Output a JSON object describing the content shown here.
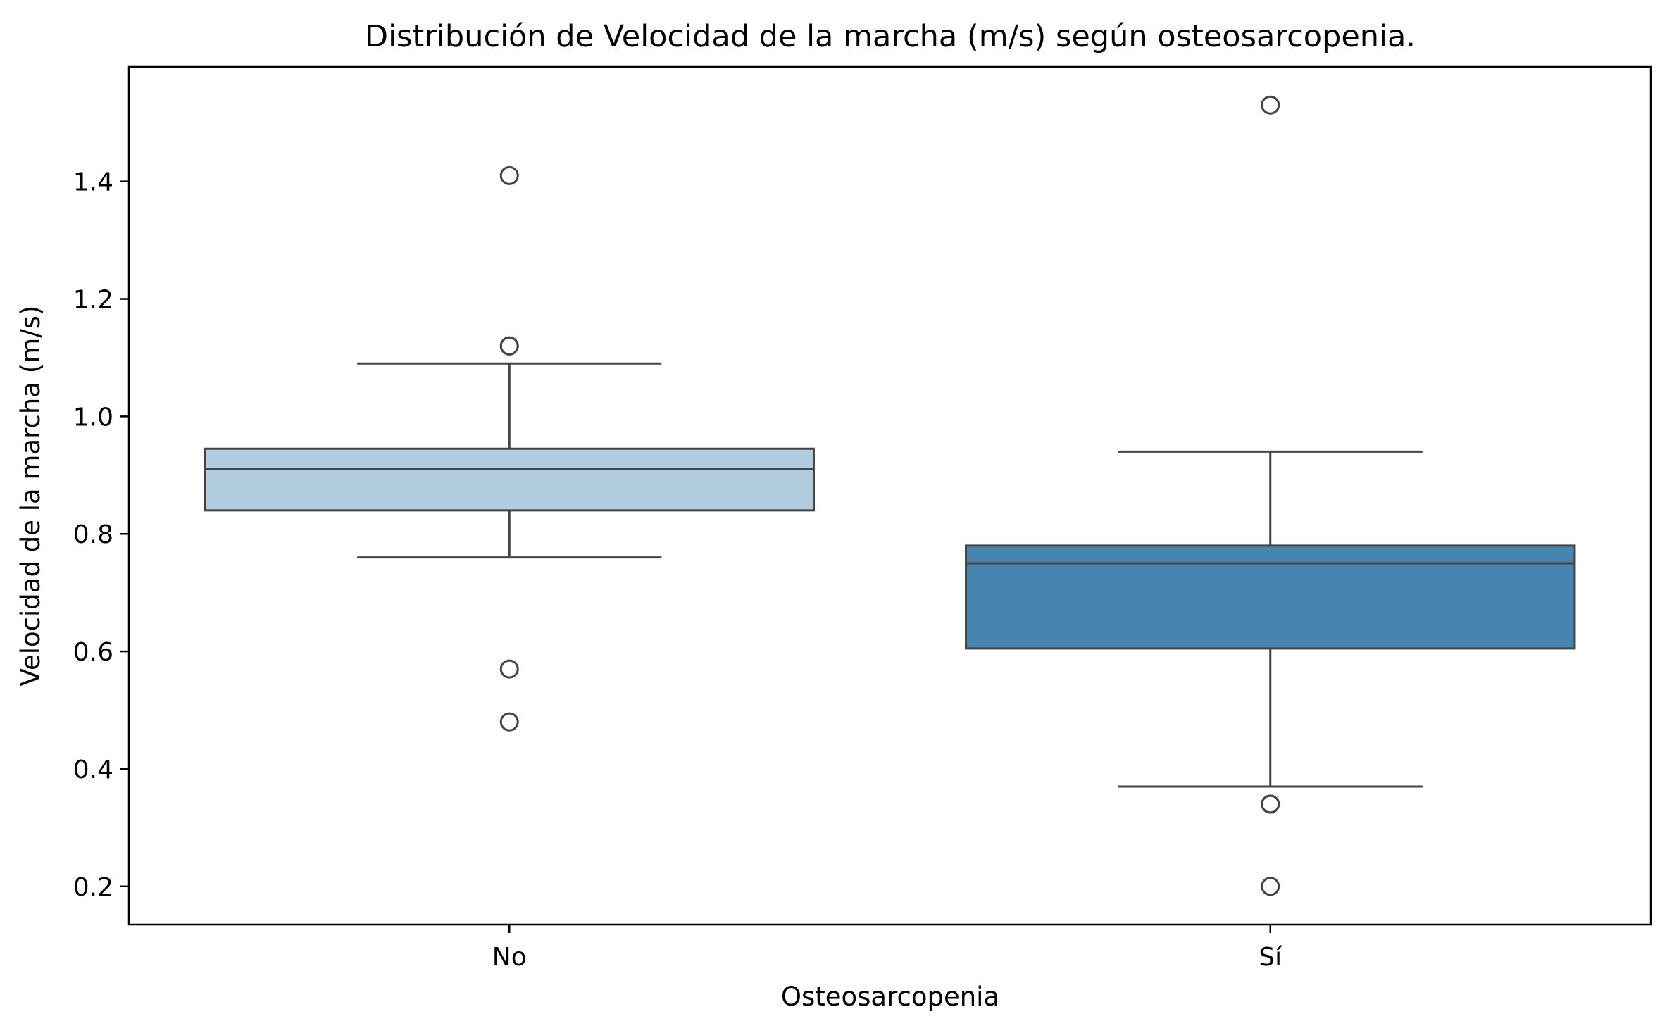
{
  "chart_data": {
    "type": "boxplot",
    "title": "Distribución de Velocidad de la marcha (m/s) según osteosarcopenia.",
    "xlabel": "Osteosarcopenia",
    "ylabel": "Velocidad de la marcha (m/s)",
    "categories": [
      "No",
      "Sí"
    ],
    "ylim": [
      0.135,
      1.595
    ],
    "yticks": [
      0.2,
      0.4,
      0.6,
      0.8,
      1.0,
      1.2,
      1.4
    ],
    "ytick_labels": [
      "0.2",
      "0.4",
      "0.6",
      "0.8",
      "1.0",
      "1.2",
      "1.4"
    ],
    "grid": false,
    "legend": "none",
    "series": [
      {
        "category": "No",
        "color": "#b3cde0",
        "whisker_low": 0.76,
        "q1": 0.84,
        "median": 0.91,
        "q3": 0.945,
        "whisker_high": 1.09,
        "outliers": [
          1.41,
          1.12,
          1.12,
          0.57,
          0.48
        ]
      },
      {
        "category": "Sí",
        "color": "#4884b0",
        "whisker_low": 0.37,
        "q1": 0.605,
        "median": 0.75,
        "q3": 0.78,
        "whisker_high": 0.94,
        "outliers": [
          1.53,
          0.34,
          0.34,
          0.2
        ]
      }
    ],
    "line_color": "#444444"
  }
}
